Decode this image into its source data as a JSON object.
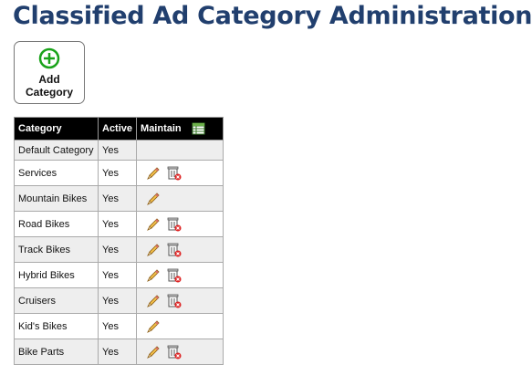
{
  "header": {
    "title": "Classified Ad Category Administration"
  },
  "button": {
    "label": "Add Category"
  },
  "table": {
    "columns": [
      "Category",
      "Active",
      "Maintain"
    ],
    "rows": [
      [
        "Default Category",
        "Yes"
      ],
      [
        "Services",
        "Yes"
      ],
      [
        "Mountain Bikes",
        "Yes"
      ],
      [
        "Road Bikes",
        "Yes"
      ],
      [
        "Track Bikes",
        "Yes"
      ],
      [
        "Hybrid Bikes",
        "Yes"
      ],
      [
        "Cruisers",
        "Yes"
      ],
      [
        "Kid's Bikes",
        "Yes"
      ],
      [
        "Bike Parts",
        "Yes"
      ]
    ]
  }
}
